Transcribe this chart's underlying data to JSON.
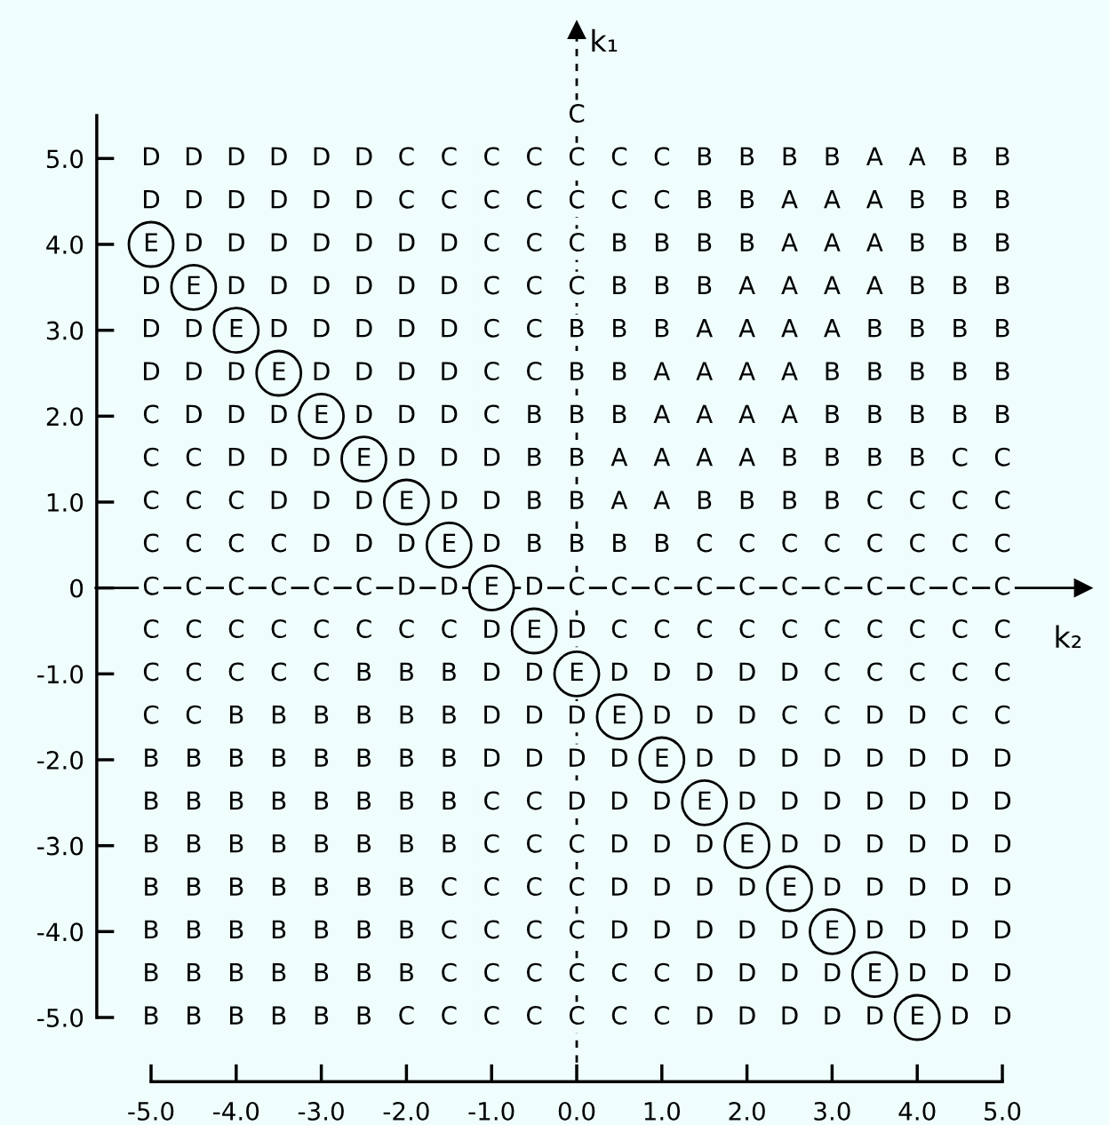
{
  "chart_data": {
    "type": "heatmap",
    "xlabel": "k₂",
    "ylabel": "k₁",
    "x": [
      -5.0,
      -4.5,
      -4.0,
      -3.5,
      -3.0,
      -2.5,
      -2.0,
      -1.5,
      -1.0,
      -0.5,
      0.0,
      0.5,
      1.0,
      1.5,
      2.0,
      2.5,
      3.0,
      3.5,
      4.0,
      4.5,
      5.0
    ],
    "y": [
      5.5,
      5.0,
      4.5,
      4.0,
      3.5,
      3.0,
      2.5,
      2.0,
      1.5,
      1.0,
      0.5,
      0.0,
      -0.5,
      -1.0,
      -1.5,
      -2.0,
      -2.5,
      -3.0,
      -3.5,
      -4.0,
      -4.5,
      -5.0
    ],
    "cells": [
      [
        null,
        null,
        null,
        null,
        null,
        null,
        null,
        null,
        null,
        null,
        "C",
        null,
        null,
        null,
        null,
        null,
        null,
        null,
        null,
        null,
        null
      ],
      [
        "D",
        "D",
        "D",
        "D",
        "D",
        "D",
        "C",
        "C",
        "C",
        "C",
        "C",
        "C",
        "C",
        "B",
        "B",
        "B",
        "B",
        "A",
        "A",
        "B",
        "B"
      ],
      [
        "D",
        "D",
        "D",
        "D",
        "D",
        "D",
        "C",
        "C",
        "C",
        "C",
        "C",
        "C",
        "C",
        "B",
        "B",
        "A",
        "A",
        "A",
        "B",
        "B",
        "B"
      ],
      [
        "E",
        "D",
        "D",
        "D",
        "D",
        "D",
        "D",
        "D",
        "C",
        "C",
        "C",
        "B",
        "B",
        "B",
        "B",
        "A",
        "A",
        "A",
        "B",
        "B",
        "B"
      ],
      [
        "D",
        "E",
        "D",
        "D",
        "D",
        "D",
        "D",
        "D",
        "C",
        "C",
        "C",
        "B",
        "B",
        "B",
        "A",
        "A",
        "A",
        "A",
        "B",
        "B",
        "B"
      ],
      [
        "D",
        "D",
        "E",
        "D",
        "D",
        "D",
        "D",
        "D",
        "C",
        "C",
        "B",
        "B",
        "B",
        "A",
        "A",
        "A",
        "A",
        "B",
        "B",
        "B",
        "B"
      ],
      [
        "D",
        "D",
        "D",
        "E",
        "D",
        "D",
        "D",
        "D",
        "C",
        "C",
        "B",
        "B",
        "A",
        "A",
        "A",
        "A",
        "B",
        "B",
        "B",
        "B",
        "B"
      ],
      [
        "C",
        "D",
        "D",
        "D",
        "E",
        "D",
        "D",
        "D",
        "C",
        "B",
        "B",
        "B",
        "A",
        "A",
        "A",
        "A",
        "B",
        "B",
        "B",
        "B",
        "B"
      ],
      [
        "C",
        "C",
        "D",
        "D",
        "D",
        "E",
        "D",
        "D",
        "D",
        "B",
        "B",
        "A",
        "A",
        "A",
        "A",
        "B",
        "B",
        "B",
        "B",
        "C",
        "C"
      ],
      [
        "C",
        "C",
        "C",
        "D",
        "D",
        "D",
        "E",
        "D",
        "D",
        "B",
        "B",
        "A",
        "A",
        "B",
        "B",
        "B",
        "B",
        "C",
        "C",
        "C",
        "C"
      ],
      [
        "C",
        "C",
        "C",
        "C",
        "D",
        "D",
        "D",
        "E",
        "D",
        "B",
        "B",
        "B",
        "B",
        "C",
        "C",
        "C",
        "C",
        "C",
        "C",
        "C",
        "C"
      ],
      [
        "C",
        "C",
        "C",
        "C",
        "C",
        "C",
        "D",
        "D",
        "E",
        "D",
        "C",
        "C",
        "C",
        "C",
        "C",
        "C",
        "C",
        "C",
        "C",
        "C",
        "C"
      ],
      [
        "C",
        "C",
        "C",
        "C",
        "C",
        "C",
        "C",
        "C",
        "D",
        "E",
        "D",
        "C",
        "C",
        "C",
        "C",
        "C",
        "C",
        "C",
        "C",
        "C",
        "C"
      ],
      [
        "C",
        "C",
        "C",
        "C",
        "C",
        "B",
        "B",
        "B",
        "D",
        "D",
        "E",
        "D",
        "D",
        "D",
        "D",
        "D",
        "C",
        "C",
        "C",
        "C",
        "C"
      ],
      [
        "C",
        "C",
        "B",
        "B",
        "B",
        "B",
        "B",
        "B",
        "D",
        "D",
        "D",
        "E",
        "D",
        "D",
        "D",
        "C",
        "C",
        "D",
        "D",
        "C",
        "C"
      ],
      [
        "B",
        "B",
        "B",
        "B",
        "B",
        "B",
        "B",
        "B",
        "D",
        "D",
        "D",
        "D",
        "E",
        "D",
        "D",
        "D",
        "D",
        "D",
        "D",
        "D",
        "D"
      ],
      [
        "B",
        "B",
        "B",
        "B",
        "B",
        "B",
        "B",
        "B",
        "C",
        "C",
        "D",
        "D",
        "D",
        "E",
        "D",
        "D",
        "D",
        "D",
        "D",
        "D",
        "D"
      ],
      [
        "B",
        "B",
        "B",
        "B",
        "B",
        "B",
        "B",
        "B",
        "C",
        "C",
        "C",
        "D",
        "D",
        "D",
        "E",
        "D",
        "D",
        "D",
        "D",
        "D",
        "D"
      ],
      [
        "B",
        "B",
        "B",
        "B",
        "B",
        "B",
        "B",
        "C",
        "C",
        "C",
        "C",
        "D",
        "D",
        "D",
        "D",
        "E",
        "D",
        "D",
        "D",
        "D",
        "D"
      ],
      [
        "B",
        "B",
        "B",
        "B",
        "B",
        "B",
        "B",
        "C",
        "C",
        "C",
        "C",
        "D",
        "D",
        "D",
        "D",
        "D",
        "E",
        "D",
        "D",
        "D",
        "D"
      ],
      [
        "B",
        "B",
        "B",
        "B",
        "B",
        "B",
        "B",
        "C",
        "C",
        "C",
        "C",
        "C",
        "C",
        "D",
        "D",
        "D",
        "D",
        "E",
        "D",
        "D",
        "D"
      ],
      [
        "B",
        "B",
        "B",
        "B",
        "B",
        "B",
        "C",
        "C",
        "C",
        "C",
        "C",
        "C",
        "C",
        "D",
        "D",
        "D",
        "D",
        "D",
        "E",
        "D",
        "D"
      ]
    ],
    "xlim": [
      -5.0,
      5.0
    ],
    "ylim": [
      -5.0,
      5.5
    ],
    "xticks": [
      {
        "value": -5,
        "label": "-5.0"
      },
      {
        "value": -4,
        "label": "-4.0"
      },
      {
        "value": -3,
        "label": "-3.0"
      },
      {
        "value": -2,
        "label": "-2.0"
      },
      {
        "value": -1,
        "label": "-1.0"
      },
      {
        "value": 0,
        "label": "0.0"
      },
      {
        "value": 1,
        "label": "1.0"
      },
      {
        "value": 2,
        "label": "2.0"
      },
      {
        "value": 3,
        "label": "3.0"
      },
      {
        "value": 4,
        "label": "4.0"
      },
      {
        "value": 5,
        "label": "5.0"
      }
    ],
    "yticks": [
      {
        "value": -5,
        "label": "-5.0"
      },
      {
        "value": -4,
        "label": "-4.0"
      },
      {
        "value": -3,
        "label": "-3.0"
      },
      {
        "value": -2,
        "label": "-2.0"
      },
      {
        "value": -1,
        "label": "-1.0"
      },
      0,
      {
        "value": 1,
        "label": "1.0"
      },
      {
        "value": 2,
        "label": "2.0"
      },
      {
        "value": 3,
        "label": "3.0"
      },
      {
        "value": 4,
        "label": "4.0"
      },
      {
        "value": 5,
        "label": "5.0"
      }
    ],
    "ref_lines": [
      {
        "axis": "x",
        "value": 0,
        "line_style": "dashed"
      },
      {
        "axis": "y",
        "value": 0,
        "line_style": "solid"
      }
    ],
    "grid": false
  }
}
